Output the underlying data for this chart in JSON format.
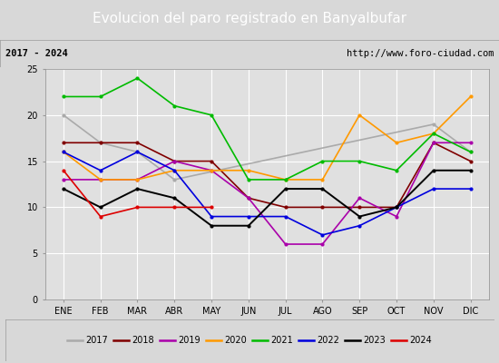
{
  "title": "Evolucion del paro registrado en Banyalbufar",
  "subtitle_left": "2017 - 2024",
  "subtitle_right": "http://www.foro-ciudad.com",
  "months": [
    "ENE",
    "FEB",
    "MAR",
    "ABR",
    "MAY",
    "JUN",
    "JUL",
    "AGO",
    "SEP",
    "OCT",
    "NOV",
    "DIC"
  ],
  "ylim": [
    0,
    25
  ],
  "yticks": [
    0,
    5,
    10,
    15,
    20,
    25
  ],
  "series": {
    "2017": {
      "color": "#aaaaaa",
      "linewidth": 1.2,
      "data": [
        20,
        17,
        16,
        13,
        null,
        null,
        null,
        null,
        null,
        null,
        19,
        16
      ]
    },
    "2018": {
      "color": "#800000",
      "linewidth": 1.2,
      "data": [
        17,
        17,
        17,
        15,
        15,
        11,
        10,
        10,
        10,
        10,
        17,
        15
      ]
    },
    "2019": {
      "color": "#aa00aa",
      "linewidth": 1.2,
      "data": [
        13,
        13,
        13,
        15,
        14,
        11,
        6,
        6,
        11,
        9,
        17,
        17
      ]
    },
    "2020": {
      "color": "#ff9900",
      "linewidth": 1.2,
      "data": [
        16,
        13,
        13,
        14,
        14,
        14,
        13,
        13,
        20,
        17,
        18,
        22
      ]
    },
    "2021": {
      "color": "#00bb00",
      "linewidth": 1.2,
      "data": [
        22,
        22,
        24,
        21,
        20,
        13,
        13,
        15,
        15,
        14,
        18,
        16
      ]
    },
    "2022": {
      "color": "#0000dd",
      "linewidth": 1.2,
      "data": [
        16,
        14,
        16,
        14,
        9,
        9,
        9,
        7,
        8,
        10,
        12,
        12
      ]
    },
    "2023": {
      "color": "#000000",
      "linewidth": 1.4,
      "data": [
        12,
        10,
        12,
        11,
        8,
        8,
        12,
        12,
        9,
        10,
        14,
        14
      ]
    },
    "2024": {
      "color": "#dd0000",
      "linewidth": 1.2,
      "data": [
        14,
        9,
        10,
        10,
        10,
        null,
        null,
        null,
        null,
        null,
        null,
        null
      ]
    }
  },
  "legend_order": [
    "2017",
    "2018",
    "2019",
    "2020",
    "2021",
    "2022",
    "2023",
    "2024"
  ],
  "bg_color": "#d8d8d8",
  "plot_bg_color": "#e0e0e0",
  "title_bg_color": "#4472c4",
  "title_text_color": "#ffffff",
  "subtitle_bg_color": "#d0d0d0",
  "grid_color": "#ffffff",
  "title_fontsize": 11,
  "subtitle_fontsize": 7.5,
  "tick_fontsize": 7,
  "legend_fontsize": 7
}
